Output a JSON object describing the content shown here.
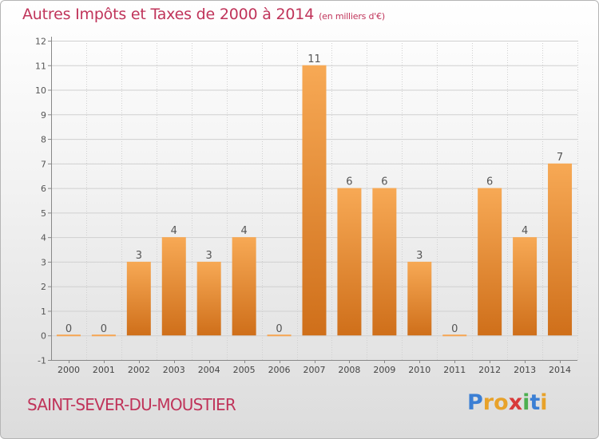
{
  "header": {
    "title": "Autres Impôts et Taxes de 2000 à 2014",
    "subtitle": "(en milliers d'€)"
  },
  "footer": {
    "commune": "SAINT-SEVER-DU-MOUSTIER",
    "logo_letters": [
      "P",
      "r",
      "o",
      "x",
      "i",
      "t",
      "i"
    ],
    "logo_colors": [
      "#3b7fd4",
      "#e8a22a",
      "#e8a22a",
      "#d83a3a",
      "#4caf50",
      "#3b7fd4",
      "#e8a22a"
    ]
  },
  "colors": {
    "bar_light": "#f6a552",
    "bar_dark": "#d0721c",
    "title": "#c0345a",
    "grid": "#d0d0d0",
    "axis": "#888888"
  },
  "chart_data": {
    "type": "bar",
    "categories": [
      "2000",
      "2001",
      "2002",
      "2003",
      "2004",
      "2005",
      "2006",
      "2007",
      "2008",
      "2009",
      "2010",
      "2011",
      "2012",
      "2013",
      "2014"
    ],
    "values": [
      0,
      0,
      3,
      4,
      3,
      4,
      0,
      11,
      6,
      6,
      3,
      0,
      6,
      4,
      7
    ],
    "data_labels": [
      "0",
      "0",
      "3",
      "4",
      "3",
      "4",
      "0",
      "11",
      "6",
      "6",
      "3",
      "0",
      "6",
      "4",
      "7"
    ],
    "y_ticks": [
      "-1",
      "0",
      "1",
      "2",
      "3",
      "4",
      "5",
      "6",
      "7",
      "8",
      "9",
      "10",
      "11",
      "12"
    ],
    "ylim": [
      -1,
      12
    ],
    "grid": true,
    "title": "Autres Impôts et Taxes de 2000 à 2014",
    "xlabel": "",
    "ylabel": ""
  }
}
